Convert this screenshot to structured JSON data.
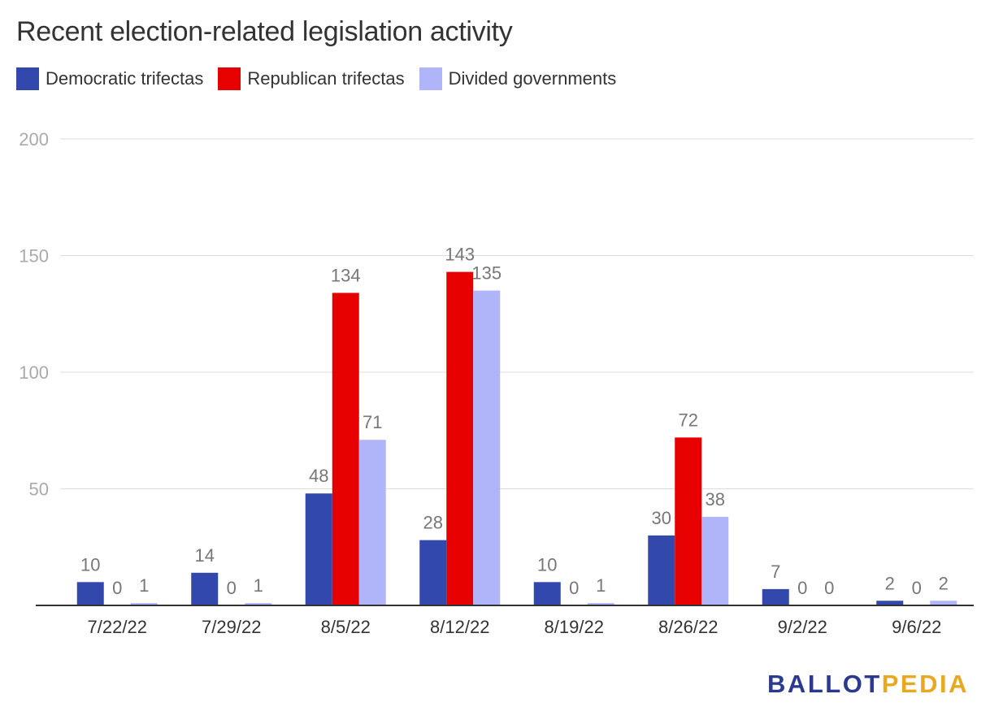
{
  "chart_data": {
    "type": "bar",
    "title": "Recent election-related legislation activity",
    "xlabel": "",
    "ylabel": "",
    "ylim": [
      0,
      200
    ],
    "yticks": [
      50,
      100,
      150,
      200
    ],
    "grid": true,
    "legend_position": "top-left",
    "categories": [
      "7/22/22",
      "7/29/22",
      "8/5/22",
      "8/12/22",
      "8/19/22",
      "8/26/22",
      "9/2/22",
      "9/6/22"
    ],
    "series": [
      {
        "name": "Democratic trifectas",
        "color": "#3348ac",
        "values": [
          10,
          14,
          48,
          28,
          10,
          30,
          7,
          2
        ]
      },
      {
        "name": "Republican trifectas",
        "color": "#e60000",
        "values": [
          0,
          0,
          134,
          143,
          0,
          72,
          0,
          0
        ]
      },
      {
        "name": "Divided governments",
        "color": "#b0b5fa",
        "values": [
          1,
          1,
          71,
          135,
          1,
          38,
          0,
          2
        ]
      }
    ]
  },
  "logo": {
    "part1": "BALLOT",
    "part2": "PEDIA"
  }
}
